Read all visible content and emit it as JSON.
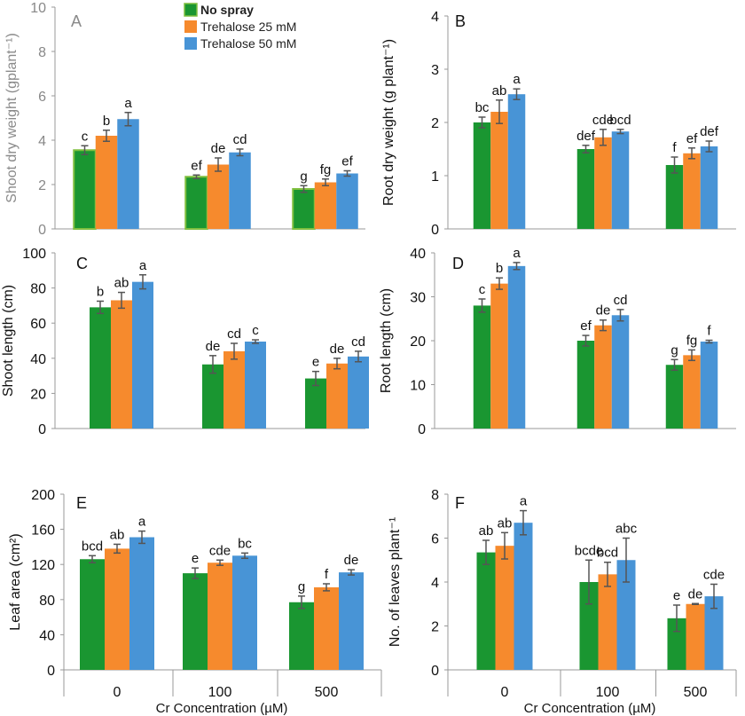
{
  "figure": {
    "x_axis_title": "Cr Concentration (µM)",
    "legend": [
      {
        "label": "No spray",
        "color": "#1a9631"
      },
      {
        "label": "Trehalose 25 mM",
        "color": "#f68a2d"
      },
      {
        "label": "Trehalose 50 mM",
        "color": "#4894d6"
      }
    ]
  },
  "chart_data": [
    {
      "type": "bar",
      "panel_label": "A",
      "ylabel": "Shoot dry weight (gplant⁻¹)",
      "ylim": [
        0,
        10
      ],
      "ticks": [
        0,
        2,
        4,
        6,
        8,
        10
      ],
      "categories": [
        "0",
        "100",
        "500"
      ],
      "series": [
        {
          "name": "No spray",
          "values": [
            3.55,
            2.35,
            1.8
          ],
          "errors": [
            0.2,
            0.08,
            0.15
          ],
          "letters": [
            "c",
            "ef",
            "g"
          ]
        },
        {
          "name": "Trehalose 25 mM",
          "values": [
            4.2,
            2.9,
            2.1
          ],
          "errors": [
            0.25,
            0.3,
            0.15
          ],
          "letters": [
            "b",
            "de",
            "fg"
          ]
        },
        {
          "name": "Trehalose 50 mM",
          "values": [
            4.95,
            3.45,
            2.5
          ],
          "errors": [
            0.3,
            0.15,
            0.12
          ],
          "letters": [
            "a",
            "cd",
            "ef"
          ]
        }
      ]
    },
    {
      "type": "bar",
      "panel_label": "B",
      "ylabel": "Root dry weight (g plant⁻¹)",
      "ylim": [
        0,
        4
      ],
      "ticks": [
        0,
        1,
        2,
        3,
        4
      ],
      "categories": [
        "0",
        "100",
        "500"
      ],
      "series": [
        {
          "name": "No spray",
          "values": [
            2.0,
            1.5,
            1.2
          ],
          "errors": [
            0.1,
            0.07,
            0.15
          ],
          "letters": [
            "bc",
            "def",
            "f"
          ]
        },
        {
          "name": "Trehalose 25 mM",
          "values": [
            2.2,
            1.72,
            1.42
          ],
          "errors": [
            0.22,
            0.15,
            0.1
          ],
          "letters": [
            "ab",
            "cde",
            "ef"
          ]
        },
        {
          "name": "Trehalose 50 mM",
          "values": [
            2.53,
            1.83,
            1.55
          ],
          "errors": [
            0.1,
            0.04,
            0.1
          ],
          "letters": [
            "a",
            "bcd",
            "def"
          ]
        }
      ]
    },
    {
      "type": "bar",
      "panel_label": "C",
      "ylabel": "Shoot length (cm)",
      "ylim": [
        0,
        100
      ],
      "ticks": [
        0,
        20,
        40,
        60,
        80,
        100
      ],
      "categories": [
        "0",
        "100",
        "500"
      ],
      "series": [
        {
          "name": "No spray",
          "values": [
            69,
            36.5,
            28.5
          ],
          "errors": [
            3.5,
            5,
            4
          ],
          "letters": [
            "b",
            "de",
            "e"
          ]
        },
        {
          "name": "Trehalose 25 mM",
          "values": [
            73,
            44,
            37
          ],
          "errors": [
            4.5,
            4.5,
            3
          ],
          "letters": [
            "ab",
            "cd",
            "de"
          ]
        },
        {
          "name": "Trehalose 50 mM",
          "values": [
            83.5,
            49.5,
            41
          ],
          "errors": [
            4,
            1,
            3
          ],
          "letters": [
            "a",
            "c",
            "cd"
          ]
        }
      ]
    },
    {
      "type": "bar",
      "panel_label": "D",
      "ylabel": "Root length (cm)",
      "ylim": [
        0,
        40
      ],
      "ticks": [
        0,
        10,
        20,
        30,
        40
      ],
      "categories": [
        "0",
        "100",
        "500"
      ],
      "series": [
        {
          "name": "No spray",
          "values": [
            28,
            20,
            14.5
          ],
          "errors": [
            1.5,
            1.2,
            1.2
          ],
          "letters": [
            "c",
            "ef",
            "g"
          ]
        },
        {
          "name": "Trehalose 25 mM",
          "values": [
            33,
            23.5,
            16.7
          ],
          "errors": [
            1.3,
            1.2,
            1.2
          ],
          "letters": [
            "b",
            "de",
            "fg"
          ]
        },
        {
          "name": "Trehalose 50 mM",
          "values": [
            37,
            25.8,
            19.8
          ],
          "errors": [
            0.8,
            1.3,
            0.3
          ],
          "letters": [
            "a",
            "cd",
            "f"
          ]
        }
      ]
    },
    {
      "type": "bar",
      "panel_label": "E",
      "ylabel": "Leaf area (cm²)",
      "ylim": [
        0,
        200
      ],
      "ticks": [
        0,
        40,
        80,
        120,
        160,
        200
      ],
      "categories": [
        "0",
        "100",
        "500"
      ],
      "series": [
        {
          "name": "No spray",
          "values": [
            126,
            110,
            77
          ],
          "errors": [
            4,
            6,
            7
          ],
          "letters": [
            "bcd",
            "e",
            "g"
          ]
        },
        {
          "name": "Trehalose 25 mM",
          "values": [
            138,
            122,
            94
          ],
          "errors": [
            5,
            3,
            4
          ],
          "letters": [
            "ab",
            "cde",
            "f"
          ]
        },
        {
          "name": "Trehalose 50 mM",
          "values": [
            151,
            130,
            111
          ],
          "errors": [
            7,
            3,
            3
          ],
          "letters": [
            "a",
            "bc",
            "de"
          ]
        }
      ]
    },
    {
      "type": "bar",
      "panel_label": "F",
      "ylabel": "No. of leaves plant⁻¹",
      "ylim": [
        0,
        8
      ],
      "ticks": [
        0,
        2,
        4,
        6,
        8
      ],
      "categories": [
        "0",
        "100",
        "500"
      ],
      "series": [
        {
          "name": "No spray",
          "values": [
            5.35,
            4.0,
            2.35
          ],
          "errors": [
            0.55,
            1.0,
            0.6
          ],
          "letters": [
            "ab",
            "bcde",
            "e"
          ]
        },
        {
          "name": "Trehalose 25 mM",
          "values": [
            5.65,
            4.35,
            3.0
          ],
          "errors": [
            0.6,
            0.55,
            0.02
          ],
          "letters": [
            "ab",
            "bcd",
            "de"
          ]
        },
        {
          "name": "Trehalose 50 mM",
          "values": [
            6.7,
            5.0,
            3.35
          ],
          "errors": [
            0.55,
            1.0,
            0.55
          ],
          "letters": [
            "a",
            "abc",
            "cde"
          ]
        }
      ]
    }
  ]
}
